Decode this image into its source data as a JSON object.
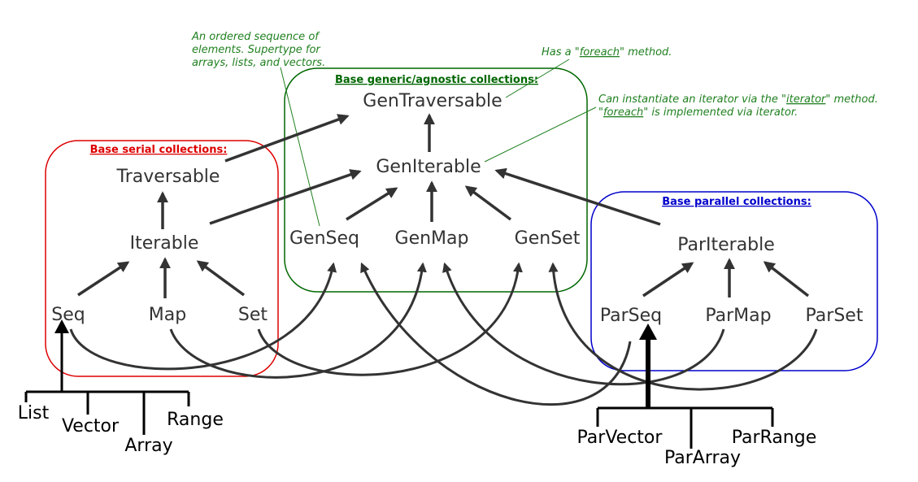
{
  "groups": {
    "generic": {
      "title": "Base generic/agnostic collections:",
      "color": "#006600"
    },
    "serial": {
      "title": "Base serial collections:",
      "color": "#dd0000"
    },
    "parallel": {
      "title": "Base parallel collections:",
      "color": "#0000cc"
    }
  },
  "nodes": {
    "gen_traversable": "GenTraversable",
    "gen_iterable": "GenIterable",
    "gen_seq": "GenSeq",
    "gen_map": "GenMap",
    "gen_set": "GenSet",
    "traversable": "Traversable",
    "iterable": "Iterable",
    "seq": "Seq",
    "map": "Map",
    "set": "Set",
    "par_iterable": "ParIterable",
    "par_seq": "ParSeq",
    "par_map": "ParMap",
    "par_set": "ParSet"
  },
  "leaves": {
    "list": "List",
    "vector": "Vector",
    "array": "Array",
    "range": "Range",
    "par_vector": "ParVector",
    "par_array": "ParArray",
    "par_range": "ParRange"
  },
  "notes": {
    "genseq_line1": "An ordered sequence of",
    "genseq_line2": "elements. Supertype for",
    "genseq_line3": "arrays, lists, and vectors.",
    "foreach_pre": "Has a \"",
    "foreach_word": "foreach",
    "foreach_post": "\" method.",
    "iter_line1_pre": "Can instantiate an iterator via the \"",
    "iter_line1_word": "iterator",
    "iter_line1_post": "\" method.",
    "iter_line2_pre": "\"",
    "iter_line2_word": "foreach",
    "iter_line2_post": "\" is implemented via iterator."
  }
}
